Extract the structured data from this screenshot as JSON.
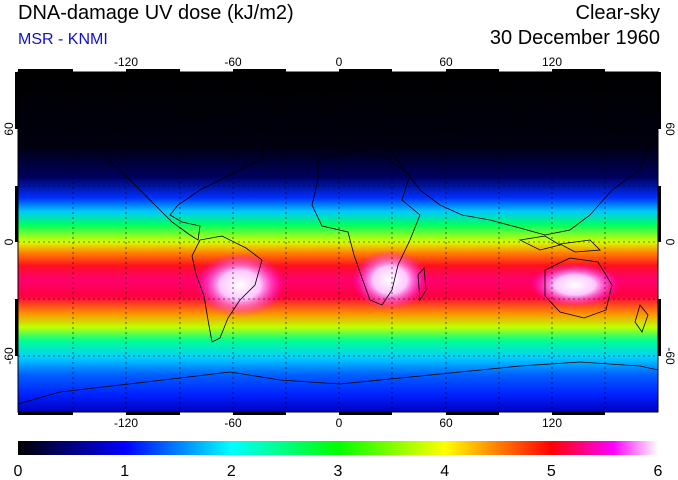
{
  "header": {
    "title": "DNA-damage UV dose (kJ/m2)",
    "source": "MSR - KNMI",
    "condition": "Clear-sky",
    "date": "30 December 1960"
  },
  "map": {
    "lon_ticks": [
      "-120",
      "-60",
      "0",
      "60",
      "120"
    ],
    "lat_ticks": [
      "60",
      "0",
      "-60"
    ]
  },
  "colorbar": {
    "min": 0,
    "max": 6,
    "ticks": [
      "0",
      "1",
      "2",
      "3",
      "4",
      "5",
      "6"
    ],
    "colors": [
      "#000000",
      "#0000ff",
      "#00ffff",
      "#00ff00",
      "#ffff00",
      "#ff0000",
      "#ff00ff",
      "#ffffff"
    ]
  },
  "colors": {
    "title": "#000000",
    "source": "#1010d0",
    "coastline": "#000000",
    "grid": "#000000"
  }
}
